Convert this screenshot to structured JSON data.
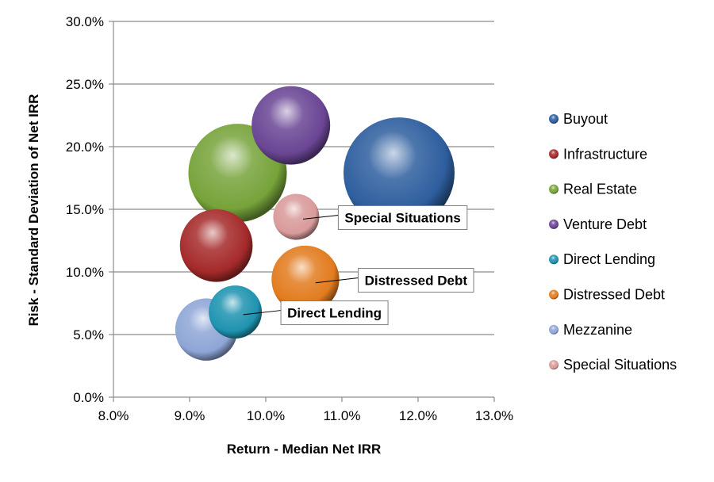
{
  "chart_data": {
    "type": "bubble",
    "title": "",
    "xlabel": "Return - Median Net IRR",
    "ylabel": "Risk - Standard Deviation of Net IRR",
    "xlim": [
      0.08,
      0.13
    ],
    "ylim": [
      0.0,
      0.3
    ],
    "xticks": [
      "8.0%",
      "9.0%",
      "10.0%",
      "11.0%",
      "12.0%",
      "13.0%"
    ],
    "yticks": [
      "0.0%",
      "5.0%",
      "10.0%",
      "15.0%",
      "20.0%",
      "25.0%",
      "30.0%"
    ],
    "grid": "horizontal",
    "legend_position": "right",
    "series": [
      {
        "name": "Buyout",
        "x": 0.1175,
        "y": 0.179,
        "size": 70,
        "color": "#2E5E9E"
      },
      {
        "name": "Infrastructure",
        "x": 0.0935,
        "y": 0.121,
        "size": 30,
        "color": "#A52A2A"
      },
      {
        "name": "Real Estate",
        "x": 0.0963,
        "y": 0.179,
        "size": 55,
        "color": "#76A33A"
      },
      {
        "name": "Venture Debt",
        "x": 0.1033,
        "y": 0.217,
        "size": 35,
        "color": "#6A4594"
      },
      {
        "name": "Direct Lending",
        "x": 0.096,
        "y": 0.068,
        "size": 16,
        "color": "#1E93B0"
      },
      {
        "name": "Distressed Debt",
        "x": 0.1052,
        "y": 0.094,
        "size": 26,
        "color": "#E27B1E"
      },
      {
        "name": "Mezzanine",
        "x": 0.0922,
        "y": 0.054,
        "size": 22,
        "color": "#8EA6D6"
      },
      {
        "name": "Special Situations",
        "x": 0.104,
        "y": 0.144,
        "size": 12,
        "color": "#D99A9A"
      }
    ],
    "callouts": [
      {
        "text": "Special Situations",
        "target": "Special Situations"
      },
      {
        "text": "Distressed Debt",
        "target": "Distressed Debt"
      },
      {
        "text": "Direct Lending",
        "target": "Direct Lending"
      }
    ]
  }
}
